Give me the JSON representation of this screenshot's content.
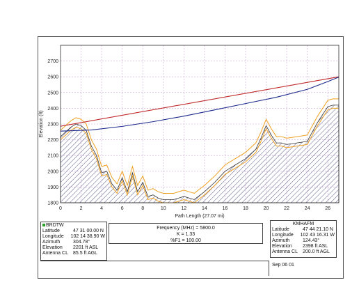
{
  "chart_data": {
    "type": "area",
    "xlabel": "Path Length (27.07 mi)",
    "ylabel": "Elevation (ft)",
    "xlim": [
      0,
      27.07
    ],
    "ylim": [
      1800,
      2800
    ],
    "x_ticks": [
      "0",
      "2",
      "4",
      "6",
      "8",
      "10",
      "12",
      "14",
      "16",
      "18",
      "20",
      "22",
      "24",
      "26"
    ],
    "y_ticks": [
      "1800",
      "1900",
      "2000",
      "2100",
      "2200",
      "2300",
      "2400",
      "2500",
      "2600",
      "2700"
    ],
    "grid": true,
    "terrain": {
      "x": [
        0,
        0.5,
        1,
        1.5,
        2,
        2.5,
        3,
        3.5,
        4,
        4.5,
        5,
        5.5,
        6,
        6.5,
        7,
        7.5,
        8,
        8.5,
        9,
        9.5,
        10,
        11,
        12,
        13,
        14,
        15,
        16,
        17,
        18,
        18.5,
        19,
        19.5,
        20,
        20.5,
        21,
        21.5,
        22,
        23,
        24,
        25,
        26,
        26.5,
        27.07
      ],
      "y": [
        2220,
        2250,
        2280,
        2300,
        2290,
        2260,
        2160,
        2100,
        1990,
        2000,
        1920,
        1880,
        1960,
        1870,
        1990,
        1870,
        1930,
        1840,
        1850,
        1830,
        1820,
        1820,
        1840,
        1820,
        1870,
        1930,
        2000,
        2040,
        2080,
        2110,
        2140,
        2210,
        2290,
        2230,
        2180,
        2180,
        2170,
        2180,
        2190,
        2310,
        2410,
        2420,
        2420
      ]
    },
    "clearance_upper": {
      "x": [
        0,
        0.5,
        1,
        1.5,
        2,
        2.5,
        3,
        3.5,
        4,
        4.5,
        5,
        5.5,
        6,
        6.5,
        7,
        7.5,
        8,
        8.5,
        9,
        9.5,
        10,
        11,
        12,
        13,
        14,
        15,
        16,
        17,
        18,
        18.5,
        19,
        19.5,
        20,
        20.5,
        21,
        21.5,
        22,
        23,
        24,
        25,
        26,
        26.5,
        27.07
      ],
      "y": [
        2260,
        2290,
        2320,
        2340,
        2330,
        2300,
        2200,
        2140,
        2030,
        2040,
        1960,
        1920,
        2000,
        1910,
        2030,
        1910,
        1970,
        1880,
        1890,
        1870,
        1860,
        1860,
        1880,
        1860,
        1910,
        1970,
        2040,
        2080,
        2120,
        2150,
        2180,
        2250,
        2330,
        2270,
        2220,
        2220,
        2210,
        2220,
        2230,
        2350,
        2450,
        2460,
        2460
      ]
    },
    "clearance_lower": {
      "x": [
        0,
        0.5,
        1,
        1.5,
        2,
        2.5,
        3,
        3.5,
        4,
        4.5,
        5,
        5.5,
        6,
        6.5,
        7,
        7.5,
        8,
        8.5,
        9,
        9.5,
        10,
        11,
        12,
        13,
        14,
        15,
        16,
        17,
        18,
        18.5,
        19,
        19.5,
        20,
        20.5,
        21,
        21.5,
        22,
        23,
        24,
        25,
        26,
        26.5,
        27.07
      ],
      "y": [
        2200,
        2230,
        2260,
        2280,
        2270,
        2240,
        2140,
        2080,
        1970,
        1980,
        1900,
        1860,
        1940,
        1850,
        1970,
        1850,
        1910,
        1820,
        1830,
        1810,
        1800,
        1800,
        1820,
        1800,
        1850,
        1910,
        1980,
        2020,
        2060,
        2090,
        2120,
        2190,
        2270,
        2210,
        2160,
        2160,
        2150,
        2160,
        2170,
        2290,
        2390,
        2400,
        2400
      ]
    },
    "los_line": {
      "x": [
        0,
        27.07
      ],
      "y": [
        2286,
        2600
      ]
    },
    "fresnel_line": {
      "x": [
        0,
        3,
        6,
        9,
        12,
        15,
        18,
        21,
        24,
        26,
        27.07
      ],
      "y": [
        2255,
        2262,
        2285,
        2315,
        2350,
        2390,
        2430,
        2470,
        2520,
        2570,
        2598
      ]
    },
    "colors": {
      "terrain": "#5a5a8a",
      "los": "#c0282a",
      "fresnel": "#1c2a8c",
      "clearance": "#f0a020",
      "grid": "#c8a6d8"
    }
  },
  "site_a": {
    "name": "BRDTW",
    "fields": [
      {
        "k": "Latitude",
        "v": "47 31 00.00 N"
      },
      {
        "k": "Longitude",
        "v": "102 14 38.90 W"
      },
      {
        "k": "Azimuth",
        "v": "304.78°"
      },
      {
        "k": "Elevation",
        "v": "2201 ft ASL"
      },
      {
        "k": "Antenna CL",
        "v": "85.5 ft AGL"
      }
    ]
  },
  "site_b": {
    "name": "KMHAFM",
    "fields": [
      {
        "k": "Latitude",
        "v": "47 44 21.10 N"
      },
      {
        "k": "Longitude",
        "v": "102 43 16.31 W"
      },
      {
        "k": "Azimuth",
        "v": "124.43°"
      },
      {
        "k": "Elevation",
        "v": "2398 ft ASL"
      },
      {
        "k": "Antenna CL",
        "v": "200.0 ft AGL"
      }
    ]
  },
  "link": {
    "frequency": "Frequency (MHz) = 5800.0",
    "k": "K = 1.33",
    "f1": "%F1 = 100.00"
  },
  "footer": {
    "date": "Sep 06 01"
  }
}
